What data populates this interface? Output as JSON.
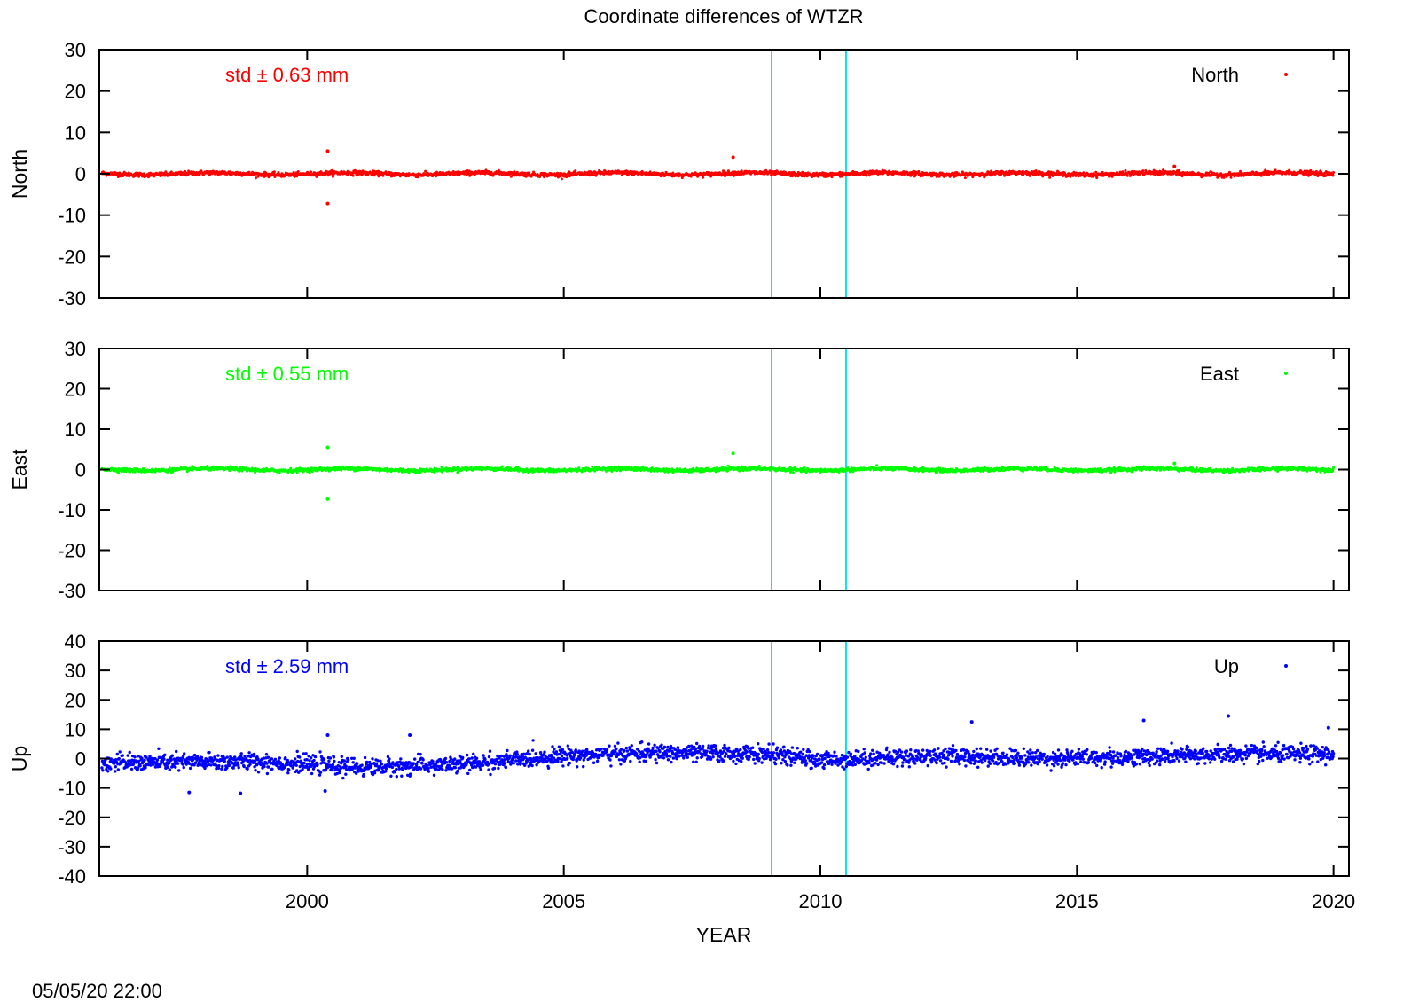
{
  "figure": {
    "title": "Coordinate differences of WTZR",
    "xlabel": "YEAR",
    "timestamp": "05/05/20 22:00"
  },
  "chart_data": [
    {
      "type": "scatter",
      "panel": "north",
      "ylabel": "North",
      "legend": "North",
      "legend_position": "top-right",
      "annotation": "std ± 0.63 mm",
      "color": "#ff0000",
      "xlim": [
        1995.95,
        2020.3
      ],
      "ylim": [
        -30,
        30
      ],
      "yticks": [
        "-30",
        "-20",
        "-10",
        "0",
        "10",
        "20",
        "30"
      ],
      "ytick_values": [
        -30,
        -20,
        -10,
        0,
        10,
        20,
        30
      ],
      "xticks": [
        "2000",
        "2005",
        "2010",
        "2015",
        "2020"
      ],
      "xtick_values": [
        2000,
        2005,
        2010,
        2015,
        2020
      ],
      "x_range": [
        1996.0,
        2020.0
      ],
      "noise_std": 0.63,
      "outliers": [
        {
          "x": 2000.4,
          "y": 5.5
        },
        {
          "x": 2000.4,
          "y": -7.2
        },
        {
          "x": 2008.3,
          "y": 4.0
        },
        {
          "x": 2016.9,
          "y": 1.8
        }
      ],
      "vertical_lines": [
        2009.05,
        2010.5
      ],
      "vertical_line_color": "#00e5ee"
    },
    {
      "type": "scatter",
      "panel": "east",
      "ylabel": "East",
      "legend": "East",
      "legend_position": "top-right",
      "annotation": "std ± 0.55 mm",
      "color": "#00ff00",
      "xlim": [
        1995.95,
        2020.3
      ],
      "ylim": [
        -30,
        30
      ],
      "yticks": [
        "-30",
        "-20",
        "-10",
        "0",
        "10",
        "20",
        "30"
      ],
      "ytick_values": [
        -30,
        -20,
        -10,
        0,
        10,
        20,
        30
      ],
      "xticks": [
        "2000",
        "2005",
        "2010",
        "2015",
        "2020"
      ],
      "xtick_values": [
        2000,
        2005,
        2010,
        2015,
        2020
      ],
      "x_range": [
        1996.0,
        2020.0
      ],
      "noise_std": 0.55,
      "outliers": [
        {
          "x": 2000.4,
          "y": 5.5
        },
        {
          "x": 2000.4,
          "y": -7.3
        },
        {
          "x": 2008.3,
          "y": 4.0
        },
        {
          "x": 2016.9,
          "y": 1.5
        }
      ],
      "vertical_lines": [
        2009.05,
        2010.5
      ],
      "vertical_line_color": "#00e5ee"
    },
    {
      "type": "scatter",
      "panel": "up",
      "ylabel": "Up",
      "legend": "Up",
      "legend_position": "top-right",
      "annotation": "std ± 2.59 mm",
      "color": "#0000ff",
      "xlim": [
        1995.95,
        2020.3
      ],
      "ylim": [
        -40,
        40
      ],
      "yticks": [
        "-40",
        "-30",
        "-20",
        "-10",
        "0",
        "10",
        "20",
        "30",
        "40"
      ],
      "ytick_values": [
        -40,
        -30,
        -20,
        -10,
        0,
        10,
        20,
        30,
        40
      ],
      "xticks": [
        "2000",
        "2005",
        "2010",
        "2015",
        "2020"
      ],
      "xtick_values": [
        2000,
        2005,
        2010,
        2015,
        2020
      ],
      "x_range": [
        1996.0,
        2020.0
      ],
      "noise_std": 2.59,
      "trend": [
        {
          "x": 1996.0,
          "y": -1.5
        },
        {
          "x": 1999.0,
          "y": -1.0
        },
        {
          "x": 2001.0,
          "y": -3.0
        },
        {
          "x": 2003.0,
          "y": -2.0
        },
        {
          "x": 2005.0,
          "y": 1.0
        },
        {
          "x": 2007.0,
          "y": 2.0
        },
        {
          "x": 2009.0,
          "y": 1.5
        },
        {
          "x": 2010.0,
          "y": -0.5
        },
        {
          "x": 2012.5,
          "y": 1.0
        },
        {
          "x": 2014.0,
          "y": 0.0
        },
        {
          "x": 2016.0,
          "y": 0.5
        },
        {
          "x": 2018.0,
          "y": 1.5
        },
        {
          "x": 2020.0,
          "y": 1.5
        }
      ],
      "outliers": [
        {
          "x": 1997.7,
          "y": -11.5
        },
        {
          "x": 1998.7,
          "y": -11.8
        },
        {
          "x": 2000.4,
          "y": 8.0
        },
        {
          "x": 2000.35,
          "y": -11.0
        },
        {
          "x": 2002.0,
          "y": 8.0
        },
        {
          "x": 2012.95,
          "y": 12.5
        },
        {
          "x": 2016.3,
          "y": 13.0
        },
        {
          "x": 2017.95,
          "y": 14.5
        },
        {
          "x": 2019.9,
          "y": 10.5
        }
      ],
      "vertical_lines": [
        2009.05,
        2010.5
      ],
      "vertical_line_color": "#00e5ee"
    }
  ]
}
